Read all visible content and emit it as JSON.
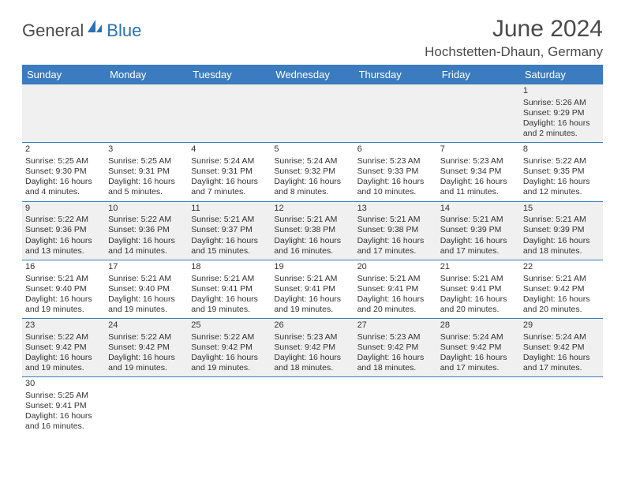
{
  "branding": {
    "text1": "General",
    "text2": "Blue",
    "icon_color": "#2a72b5"
  },
  "title": {
    "month": "June 2024",
    "location": "Hochstetten-Dhaun, Germany"
  },
  "colors": {
    "header_bg": "#3b7bbf",
    "header_text": "#ffffff",
    "row_alt_bg": "#f0f0f0",
    "row_plain_bg": "#ffffff",
    "border": "#3b7bbf",
    "text": "#333333",
    "title_text": "#4a4a4a"
  },
  "weekdays": [
    "Sunday",
    "Monday",
    "Tuesday",
    "Wednesday",
    "Thursday",
    "Friday",
    "Saturday"
  ],
  "weeks": [
    [
      null,
      null,
      null,
      null,
      null,
      null,
      {
        "day": "1",
        "sunrise": "Sunrise: 5:26 AM",
        "sunset": "Sunset: 9:29 PM",
        "daylight": "Daylight: 16 hours and 2 minutes."
      }
    ],
    [
      {
        "day": "2",
        "sunrise": "Sunrise: 5:25 AM",
        "sunset": "Sunset: 9:30 PM",
        "daylight": "Daylight: 16 hours and 4 minutes."
      },
      {
        "day": "3",
        "sunrise": "Sunrise: 5:25 AM",
        "sunset": "Sunset: 9:31 PM",
        "daylight": "Daylight: 16 hours and 5 minutes."
      },
      {
        "day": "4",
        "sunrise": "Sunrise: 5:24 AM",
        "sunset": "Sunset: 9:31 PM",
        "daylight": "Daylight: 16 hours and 7 minutes."
      },
      {
        "day": "5",
        "sunrise": "Sunrise: 5:24 AM",
        "sunset": "Sunset: 9:32 PM",
        "daylight": "Daylight: 16 hours and 8 minutes."
      },
      {
        "day": "6",
        "sunrise": "Sunrise: 5:23 AM",
        "sunset": "Sunset: 9:33 PM",
        "daylight": "Daylight: 16 hours and 10 minutes."
      },
      {
        "day": "7",
        "sunrise": "Sunrise: 5:23 AM",
        "sunset": "Sunset: 9:34 PM",
        "daylight": "Daylight: 16 hours and 11 minutes."
      },
      {
        "day": "8",
        "sunrise": "Sunrise: 5:22 AM",
        "sunset": "Sunset: 9:35 PM",
        "daylight": "Daylight: 16 hours and 12 minutes."
      }
    ],
    [
      {
        "day": "9",
        "sunrise": "Sunrise: 5:22 AM",
        "sunset": "Sunset: 9:36 PM",
        "daylight": "Daylight: 16 hours and 13 minutes."
      },
      {
        "day": "10",
        "sunrise": "Sunrise: 5:22 AM",
        "sunset": "Sunset: 9:36 PM",
        "daylight": "Daylight: 16 hours and 14 minutes."
      },
      {
        "day": "11",
        "sunrise": "Sunrise: 5:21 AM",
        "sunset": "Sunset: 9:37 PM",
        "daylight": "Daylight: 16 hours and 15 minutes."
      },
      {
        "day": "12",
        "sunrise": "Sunrise: 5:21 AM",
        "sunset": "Sunset: 9:38 PM",
        "daylight": "Daylight: 16 hours and 16 minutes."
      },
      {
        "day": "13",
        "sunrise": "Sunrise: 5:21 AM",
        "sunset": "Sunset: 9:38 PM",
        "daylight": "Daylight: 16 hours and 17 minutes."
      },
      {
        "day": "14",
        "sunrise": "Sunrise: 5:21 AM",
        "sunset": "Sunset: 9:39 PM",
        "daylight": "Daylight: 16 hours and 17 minutes."
      },
      {
        "day": "15",
        "sunrise": "Sunrise: 5:21 AM",
        "sunset": "Sunset: 9:39 PM",
        "daylight": "Daylight: 16 hours and 18 minutes."
      }
    ],
    [
      {
        "day": "16",
        "sunrise": "Sunrise: 5:21 AM",
        "sunset": "Sunset: 9:40 PM",
        "daylight": "Daylight: 16 hours and 19 minutes."
      },
      {
        "day": "17",
        "sunrise": "Sunrise: 5:21 AM",
        "sunset": "Sunset: 9:40 PM",
        "daylight": "Daylight: 16 hours and 19 minutes."
      },
      {
        "day": "18",
        "sunrise": "Sunrise: 5:21 AM",
        "sunset": "Sunset: 9:41 PM",
        "daylight": "Daylight: 16 hours and 19 minutes."
      },
      {
        "day": "19",
        "sunrise": "Sunrise: 5:21 AM",
        "sunset": "Sunset: 9:41 PM",
        "daylight": "Daylight: 16 hours and 19 minutes."
      },
      {
        "day": "20",
        "sunrise": "Sunrise: 5:21 AM",
        "sunset": "Sunset: 9:41 PM",
        "daylight": "Daylight: 16 hours and 20 minutes."
      },
      {
        "day": "21",
        "sunrise": "Sunrise: 5:21 AM",
        "sunset": "Sunset: 9:41 PM",
        "daylight": "Daylight: 16 hours and 20 minutes."
      },
      {
        "day": "22",
        "sunrise": "Sunrise: 5:21 AM",
        "sunset": "Sunset: 9:42 PM",
        "daylight": "Daylight: 16 hours and 20 minutes."
      }
    ],
    [
      {
        "day": "23",
        "sunrise": "Sunrise: 5:22 AM",
        "sunset": "Sunset: 9:42 PM",
        "daylight": "Daylight: 16 hours and 19 minutes."
      },
      {
        "day": "24",
        "sunrise": "Sunrise: 5:22 AM",
        "sunset": "Sunset: 9:42 PM",
        "daylight": "Daylight: 16 hours and 19 minutes."
      },
      {
        "day": "25",
        "sunrise": "Sunrise: 5:22 AM",
        "sunset": "Sunset: 9:42 PM",
        "daylight": "Daylight: 16 hours and 19 minutes."
      },
      {
        "day": "26",
        "sunrise": "Sunrise: 5:23 AM",
        "sunset": "Sunset: 9:42 PM",
        "daylight": "Daylight: 16 hours and 18 minutes."
      },
      {
        "day": "27",
        "sunrise": "Sunrise: 5:23 AM",
        "sunset": "Sunset: 9:42 PM",
        "daylight": "Daylight: 16 hours and 18 minutes."
      },
      {
        "day": "28",
        "sunrise": "Sunrise: 5:24 AM",
        "sunset": "Sunset: 9:42 PM",
        "daylight": "Daylight: 16 hours and 17 minutes."
      },
      {
        "day": "29",
        "sunrise": "Sunrise: 5:24 AM",
        "sunset": "Sunset: 9:42 PM",
        "daylight": "Daylight: 16 hours and 17 minutes."
      }
    ],
    [
      {
        "day": "30",
        "sunrise": "Sunrise: 5:25 AM",
        "sunset": "Sunset: 9:41 PM",
        "daylight": "Daylight: 16 hours and 16 minutes."
      },
      null,
      null,
      null,
      null,
      null,
      null
    ]
  ]
}
